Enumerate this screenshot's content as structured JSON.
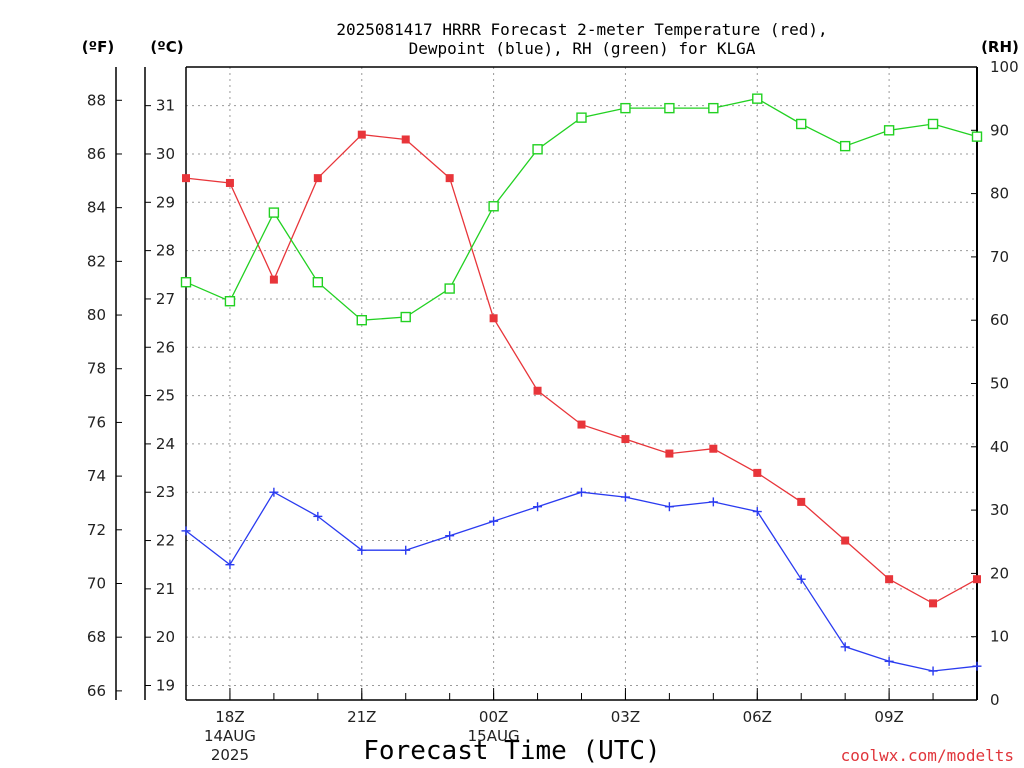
{
  "title": {
    "line1": "2025081417 HRRR Forecast 2-meter Temperature (red),",
    "line2": "Dewpoint (blue), RH (green) for KLGA"
  },
  "units": {
    "fahrenheit": "(ºF)",
    "celsius": "(ºC)",
    "rh": "(RH)"
  },
  "xlabel": "Forecast Time (UTC)",
  "credit": "coolwx.com/modelts",
  "colors": {
    "temperature": "#e8353a",
    "dewpoint": "#2a3bf0",
    "rh": "#22d122",
    "axis": "#000000",
    "grid": "#9a9a9a"
  },
  "chart_data": {
    "type": "line",
    "title": "2025081417 HRRR Forecast 2-meter Temperature (red), Dewpoint (blue), RH (green) for KLGA",
    "xlabel": "Forecast Time (UTC)",
    "x": [
      "17Z",
      "18Z",
      "19Z",
      "20Z",
      "21Z",
      "22Z",
      "23Z",
      "00Z",
      "01Z",
      "02Z",
      "03Z",
      "04Z",
      "05Z",
      "06Z",
      "07Z",
      "08Z",
      "09Z",
      "10Z",
      "11Z"
    ],
    "x_ticks": [
      {
        "label": "18Z",
        "sub": [
          "14AUG",
          "2025"
        ],
        "index": 1
      },
      {
        "label": "21Z",
        "sub": [],
        "index": 4
      },
      {
        "label": "00Z",
        "sub": [
          "15AUG"
        ],
        "index": 7
      },
      {
        "label": "03Z",
        "sub": [],
        "index": 10
      },
      {
        "label": "06Z",
        "sub": [],
        "index": 13
      },
      {
        "label": "09Z",
        "sub": [],
        "index": 16
      }
    ],
    "xlim": [
      0,
      18
    ],
    "y_left_celsius": {
      "ylim": [
        18.7,
        31.8
      ],
      "ticks": [
        19,
        20,
        21,
        22,
        23,
        24,
        25,
        26,
        27,
        28,
        29,
        30,
        31
      ]
    },
    "y_left_fahrenheit": {
      "ticks": [
        66,
        68,
        70,
        72,
        74,
        76,
        78,
        80,
        82,
        84,
        86,
        88
      ]
    },
    "y_right_rh": {
      "ylim": [
        0,
        100
      ],
      "ticks": [
        0,
        10,
        20,
        30,
        40,
        50,
        60,
        70,
        80,
        90,
        100
      ]
    },
    "grid": true,
    "series": [
      {
        "name": "Temperature",
        "axis": "celsius",
        "marker": "filled-square",
        "values": [
          29.5,
          29.4,
          27.4,
          29.5,
          30.4,
          30.3,
          29.5,
          26.6,
          25.1,
          24.4,
          24.1,
          23.8,
          23.9,
          23.4,
          22.8,
          22.0,
          21.2,
          20.7,
          21.2
        ]
      },
      {
        "name": "Dewpoint",
        "axis": "celsius",
        "marker": "plus",
        "values": [
          22.2,
          21.5,
          23.0,
          22.5,
          21.8,
          21.8,
          22.1,
          22.4,
          22.7,
          23.0,
          22.9,
          22.7,
          22.8,
          22.6,
          21.2,
          19.8,
          19.5,
          19.3,
          19.4
        ]
      },
      {
        "name": "RH",
        "axis": "rh",
        "marker": "open-square",
        "values": [
          66,
          63,
          77,
          66,
          60,
          60.5,
          65,
          78,
          87,
          92,
          93.5,
          93.5,
          93.5,
          95,
          91,
          87.5,
          90,
          91,
          89
        ]
      }
    ]
  }
}
